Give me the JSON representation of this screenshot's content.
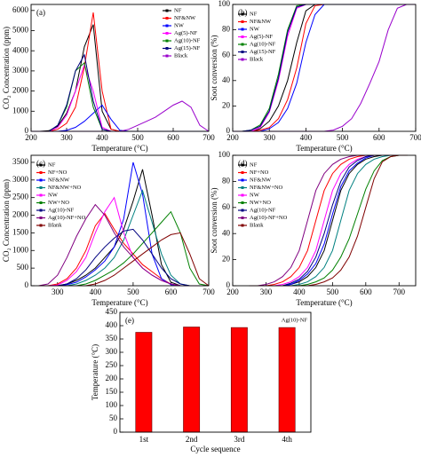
{
  "chart_data": [
    {
      "type": "line",
      "panel_label": "(a)",
      "xlabel": "Temperature (°C)",
      "ylabel": "CO₂ Concentration (ppm)",
      "legend": "upper right",
      "x": [
        200,
        225,
        250,
        275,
        300,
        325,
        350,
        375,
        400,
        425,
        450,
        475,
        500,
        525,
        550,
        575,
        600,
        625,
        650,
        675,
        700
      ],
      "xlim": [
        200,
        700
      ],
      "xticks": [
        200,
        300,
        400,
        500,
        600,
        700
      ],
      "ylim": [
        0,
        6300
      ],
      "yticks": [
        0,
        1000,
        2000,
        3000,
        4000,
        5000,
        6000
      ],
      "series": [
        {
          "name": "NF",
          "color": "#000000",
          "values": [
            0,
            0,
            30,
            250,
            900,
            2000,
            4200,
            5300,
            1000,
            100,
            0,
            0,
            0,
            0,
            0,
            0,
            0,
            0,
            0,
            0,
            0
          ]
        },
        {
          "name": "NF&NW",
          "color": "#ff0000",
          "values": [
            0,
            0,
            0,
            100,
            400,
            1200,
            3200,
            5900,
            2000,
            100,
            0,
            0,
            0,
            0,
            0,
            0,
            0,
            0,
            0,
            0,
            0
          ]
        },
        {
          "name": "NW",
          "color": "#0000ff",
          "values": [
            0,
            0,
            0,
            0,
            50,
            200,
            500,
            900,
            1300,
            600,
            50,
            0,
            0,
            0,
            0,
            0,
            0,
            0,
            0,
            0,
            0
          ]
        },
        {
          "name": "Ag(5)-NF",
          "color": "#ff00ff",
          "values": [
            0,
            0,
            0,
            200,
            800,
            2000,
            3300,
            2000,
            200,
            0,
            0,
            0,
            0,
            0,
            0,
            0,
            0,
            0,
            0,
            0,
            0
          ]
        },
        {
          "name": "Ag(10)-NF",
          "color": "#008000",
          "values": [
            0,
            0,
            0,
            300,
            1200,
            3000,
            3400,
            1200,
            100,
            0,
            0,
            0,
            0,
            0,
            0,
            0,
            0,
            0,
            0,
            0,
            0
          ]
        },
        {
          "name": "Ag(15)-NF",
          "color": "#000080",
          "values": [
            0,
            0,
            0,
            300,
            1300,
            3000,
            3800,
            1500,
            100,
            0,
            0,
            0,
            0,
            0,
            0,
            0,
            0,
            0,
            0,
            0,
            0
          ]
        },
        {
          "name": "Black",
          "color": "#9900cc",
          "values": [
            0,
            0,
            0,
            0,
            0,
            0,
            0,
            0,
            0,
            0,
            0,
            100,
            300,
            500,
            700,
            1000,
            1300,
            1500,
            1200,
            300,
            0
          ]
        }
      ]
    },
    {
      "type": "line",
      "panel_label": "(b)",
      "xlabel": "Temperature (°C)",
      "ylabel": "Soot conversion (%)",
      "legend": "upper left",
      "x": [
        200,
        225,
        250,
        275,
        300,
        325,
        350,
        375,
        400,
        425,
        450,
        475,
        500,
        525,
        550,
        575,
        600,
        625,
        650,
        675,
        700
      ],
      "xlim": [
        200,
        700
      ],
      "xticks": [
        200,
        300,
        400,
        500,
        600,
        700
      ],
      "ylim": [
        0,
        100
      ],
      "yticks": [
        0,
        20,
        40,
        60,
        80,
        100
      ],
      "series": [
        {
          "name": "NF",
          "color": "#000000",
          "values": [
            0,
            0,
            0,
            2,
            8,
            20,
            40,
            70,
            95,
            100,
            100,
            100,
            100,
            100,
            100,
            100,
            100,
            100,
            100,
            100,
            100
          ]
        },
        {
          "name": "NF&NW",
          "color": "#ff0000",
          "values": [
            0,
            0,
            0,
            1,
            3,
            10,
            25,
            50,
            85,
            99,
            100,
            100,
            100,
            100,
            100,
            100,
            100,
            100,
            100,
            100,
            100
          ]
        },
        {
          "name": "NW",
          "color": "#0000ff",
          "values": [
            0,
            0,
            0,
            0,
            2,
            7,
            18,
            38,
            70,
            92,
            100,
            100,
            100,
            100,
            100,
            100,
            100,
            100,
            100,
            100,
            100
          ]
        },
        {
          "name": "Ag(5)-NF",
          "color": "#ff00ff",
          "values": [
            0,
            0,
            0,
            3,
            15,
            40,
            75,
            97,
            100,
            100,
            100,
            100,
            100,
            100,
            100,
            100,
            100,
            100,
            100,
            100,
            100
          ]
        },
        {
          "name": "Ag(10)-NF",
          "color": "#008000",
          "values": [
            0,
            0,
            1,
            5,
            18,
            45,
            80,
            99,
            100,
            100,
            100,
            100,
            100,
            100,
            100,
            100,
            100,
            100,
            100,
            100,
            100
          ]
        },
        {
          "name": "Ag(15)-NF",
          "color": "#000080",
          "values": [
            0,
            0,
            1,
            4,
            16,
            42,
            78,
            98,
            100,
            100,
            100,
            100,
            100,
            100,
            100,
            100,
            100,
            100,
            100,
            100,
            100
          ]
        },
        {
          "name": "Black",
          "color": "#9900cc",
          "values": [
            0,
            0,
            0,
            0,
            0,
            0,
            0,
            0,
            0,
            0,
            0,
            1,
            4,
            10,
            22,
            38,
            55,
            80,
            97,
            100,
            100
          ]
        }
      ]
    },
    {
      "type": "line",
      "panel_label": "(c)",
      "xlabel": "Temperature (°C)",
      "ylabel": "CO₂ Concentration (ppm)",
      "legend": "upper left",
      "x": [
        250,
        275,
        300,
        325,
        350,
        375,
        400,
        425,
        450,
        475,
        500,
        525,
        550,
        575,
        600,
        625,
        650,
        675,
        700
      ],
      "xlim": [
        230,
        700
      ],
      "xticks": [
        300,
        400,
        500,
        600,
        700
      ],
      "ylim": [
        0,
        3700
      ],
      "yticks": [
        0,
        500,
        1000,
        1500,
        2000,
        2500,
        3000,
        3500
      ],
      "series": [
        {
          "name": "NF",
          "color": "#000000",
          "values": [
            0,
            0,
            0,
            50,
            150,
            300,
            500,
            800,
            1100,
            1600,
            2400,
            3300,
            2000,
            600,
            100,
            0,
            0,
            0,
            0
          ]
        },
        {
          "name": "NF+NO",
          "color": "#ff0000",
          "values": [
            0,
            0,
            50,
            200,
            500,
            1000,
            1700,
            2050,
            1600,
            1200,
            900,
            600,
            400,
            200,
            50,
            0,
            0,
            0,
            0
          ]
        },
        {
          "name": "NF&NW",
          "color": "#0000ff",
          "values": [
            0,
            0,
            0,
            30,
            100,
            250,
            450,
            700,
            1100,
            1900,
            3500,
            2600,
            900,
            200,
            30,
            0,
            0,
            0,
            0
          ]
        },
        {
          "name": "NF&NW+NO",
          "color": "#008080",
          "values": [
            0,
            0,
            0,
            0,
            50,
            150,
            300,
            500,
            800,
            1300,
            2000,
            2700,
            1800,
            900,
            300,
            50,
            0,
            0,
            0
          ]
        },
        {
          "name": "NW",
          "color": "#ff00ff",
          "values": [
            0,
            0,
            20,
            150,
            400,
            800,
            1500,
            2100,
            2500,
            1500,
            800,
            500,
            300,
            150,
            50,
            0,
            0,
            0,
            0
          ]
        },
        {
          "name": "NW+NO",
          "color": "#008000",
          "values": [
            0,
            0,
            0,
            0,
            0,
            50,
            150,
            300,
            450,
            650,
            900,
            1200,
            1500,
            1800,
            2100,
            1500,
            500,
            50,
            0
          ]
        },
        {
          "name": "Ag(10)-NF",
          "color": "#000080",
          "values": [
            0,
            0,
            0,
            50,
            200,
            450,
            800,
            1100,
            1350,
            1550,
            1600,
            1300,
            900,
            500,
            200,
            50,
            0,
            0,
            0
          ]
        },
        {
          "name": "Ag(10)-NF+NO",
          "color": "#800080",
          "values": [
            0,
            50,
            300,
            800,
            1400,
            1900,
            2300,
            2000,
            1500,
            1100,
            800,
            500,
            300,
            150,
            50,
            0,
            0,
            0,
            0
          ]
        },
        {
          "name": "Blank",
          "color": "#800000",
          "values": [
            0,
            0,
            0,
            0,
            0,
            0,
            50,
            150,
            300,
            500,
            700,
            900,
            1100,
            1300,
            1450,
            1500,
            900,
            200,
            0
          ]
        }
      ]
    },
    {
      "type": "line",
      "panel_label": "(d)",
      "xlabel": "Temperature (°C)",
      "ylabel": "Soot conversion (%)",
      "legend": "upper left",
      "x": [
        250,
        275,
        300,
        325,
        350,
        375,
        400,
        425,
        450,
        475,
        500,
        525,
        550,
        575,
        600,
        625,
        650,
        675,
        700,
        725
      ],
      "xlim": [
        200,
        750
      ],
      "xticks": [
        200,
        300,
        400,
        500,
        600,
        700
      ],
      "ylim": [
        0,
        100
      ],
      "yticks": [
        0,
        20,
        40,
        60,
        80,
        100
      ],
      "series": [
        {
          "name": "NF",
          "color": "#000000",
          "values": [
            0,
            0,
            0,
            0,
            0,
            1,
            3,
            7,
            14,
            27,
            50,
            73,
            86,
            93,
            97,
            99,
            100,
            100,
            100,
            100
          ]
        },
        {
          "name": "NF+NO",
          "color": "#ff0000",
          "values": [
            0,
            0,
            0,
            1,
            3,
            7,
            14,
            27,
            50,
            73,
            86,
            93,
            97,
            99,
            100,
            100,
            100,
            100,
            100,
            100
          ]
        },
        {
          "name": "NF&NW",
          "color": "#0000ff",
          "values": [
            0,
            0,
            0,
            0,
            0,
            1,
            4,
            9,
            17,
            32,
            55,
            76,
            88,
            94,
            98,
            100,
            100,
            100,
            100,
            100
          ]
        },
        {
          "name": "NF&NW+NO",
          "color": "#008080",
          "values": [
            0,
            0,
            0,
            0,
            0,
            0,
            1,
            3,
            7,
            14,
            27,
            50,
            73,
            86,
            93,
            97,
            99,
            100,
            100,
            100
          ]
        },
        {
          "name": "NW",
          "color": "#ff00ff",
          "values": [
            0,
            0,
            0,
            0,
            1,
            3,
            7,
            14,
            27,
            50,
            73,
            86,
            93,
            97,
            99,
            100,
            100,
            100,
            100,
            100
          ]
        },
        {
          "name": "NW+NO",
          "color": "#008000",
          "values": [
            0,
            0,
            0,
            0,
            0,
            0,
            0,
            1,
            3,
            6,
            12,
            22,
            36,
            55,
            74,
            88,
            96,
            99,
            100,
            100
          ]
        },
        {
          "name": "Ag(10)-NF",
          "color": "#000080",
          "values": [
            0,
            0,
            0,
            0,
            0,
            2,
            5,
            11,
            22,
            40,
            62,
            80,
            91,
            96,
            99,
            100,
            100,
            100,
            100,
            100
          ]
        },
        {
          "name": "Ag(10)-NF+NO",
          "color": "#800080",
          "values": [
            0,
            0,
            1,
            3,
            7,
            14,
            27,
            50,
            73,
            86,
            93,
            97,
            99,
            100,
            100,
            100,
            100,
            100,
            100,
            100
          ]
        },
        {
          "name": "Blank",
          "color": "#800000",
          "values": [
            0,
            0,
            0,
            0,
            0,
            0,
            0,
            0,
            1,
            3,
            6,
            12,
            22,
            38,
            60,
            82,
            95,
            99,
            100,
            100
          ]
        }
      ]
    },
    {
      "type": "bar",
      "panel_label": "(e)",
      "annotation": "Ag(10)-NF",
      "xlabel": "Cycle sequence",
      "ylabel": "Temperature (°C)",
      "categories": [
        "1st",
        "2nd",
        "3rd",
        "4th"
      ],
      "values": [
        375,
        395,
        393,
        393
      ],
      "color": "#ff0000",
      "ylim": [
        0,
        450
      ],
      "yticks": [
        0,
        50,
        100,
        150,
        200,
        250,
        300,
        350,
        400,
        450
      ]
    }
  ]
}
